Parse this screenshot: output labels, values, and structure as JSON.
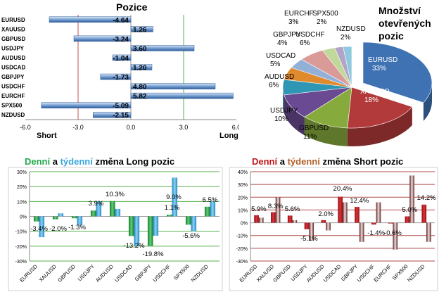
{
  "colors": {
    "bar_blue": "#4f81bd",
    "long_green": "#22a84a",
    "long_blue": "#39a6dc",
    "short_red": "#c0161b",
    "short_dark": "#7a1a1a",
    "grid_green": "#57b04c",
    "grid_red": "#b04a4a",
    "pie_title": "#000000"
  },
  "chart_data": [
    {
      "type": "bar",
      "orientation": "horizontal",
      "title": "Pozice",
      "categories": [
        "EURUSD",
        "XAUUSD",
        "GBPUSD",
        "USDJPY",
        "AUDUSD",
        "USDCAD",
        "GBPJPY",
        "USDCHF",
        "EURCHF",
        "SPX500",
        "NZDUSD"
      ],
      "values": [
        -4.64,
        1.26,
        -3.24,
        3.6,
        -1.04,
        1.2,
        -1.73,
        4.8,
        5.82,
        -5.09,
        -2.15
      ],
      "value_labels": [
        "-4.64",
        "1.26",
        "-3.24",
        "3.60",
        "-1.04",
        "1.20",
        "-1.73",
        "4.80",
        "5.82",
        "-5.09",
        "-2.15"
      ],
      "xlim": [
        -6,
        6
      ],
      "xticks": [
        "-6.0",
        "-3.0",
        "0.0",
        "3.0",
        "6.0"
      ],
      "xtick_values": [
        -6,
        -3,
        0,
        3,
        6
      ],
      "left_label": "Short",
      "right_label": "Long"
    },
    {
      "type": "pie",
      "title_lines": [
        "Množství",
        "otevřených",
        "pozic"
      ],
      "slices": [
        {
          "name": "EURUSD",
          "value": 33,
          "label": "33%",
          "color": "#3f72b3"
        },
        {
          "name": "XAUUSD",
          "value": 18,
          "label": "18%",
          "color": "#b33a3a"
        },
        {
          "name": "GBPUSD",
          "value": 11,
          "label": "11%",
          "color": "#86aa3c"
        },
        {
          "name": "USDJPY",
          "value": 10,
          "label": "10%",
          "color": "#6a4a92"
        },
        {
          "name": "AUDUSD",
          "value": 6,
          "label": "6%",
          "color": "#2f97b5"
        },
        {
          "name": "USDCAD",
          "value": 5,
          "label": "5%",
          "color": "#e08a2e"
        },
        {
          "name": "GBPJPY",
          "value": 4,
          "label": "4%",
          "color": "#93b0d8"
        },
        {
          "name": "USDCHF",
          "value": 6,
          "label": "6%",
          "color": "#d99a98"
        },
        {
          "name": "EURCHF",
          "value": 3,
          "label": "3%",
          "color": "#c2d89a"
        },
        {
          "name": "SPX500",
          "value": 2,
          "label": "2%",
          "color": "#b2a3c8"
        },
        {
          "name": "NZDUSD",
          "value": 2,
          "label": "2%",
          "color": "#8fc9de"
        }
      ]
    },
    {
      "type": "bar",
      "title_parts": [
        "Denní",
        " a ",
        "týdenní",
        " změna Long pozic"
      ],
      "categories": [
        "EURUSD",
        "XAUUSD",
        "GBPUSD",
        "USDJPY",
        "AUDUSD",
        "USDCAD",
        "GBPJPY",
        "USDCHF",
        "SPX500",
        "NZDUSD"
      ],
      "series": [
        {
          "name": "Denní",
          "values": [
            -3.4,
            -2.0,
            -1.3,
            3.9,
            10.3,
            -13.2,
            -19.8,
            1.1,
            -5.6,
            6.5
          ]
        },
        {
          "name": "týdenní",
          "values": [
            -14.0,
            2.0,
            -6.0,
            10.0,
            5.0,
            -20.0,
            -13.0,
            26.0,
            -10.0,
            10.0
          ]
        }
      ],
      "data_labels": [
        "-3.4%",
        "-2.0%",
        "-1.3%",
        "3.9%",
        "10.3%",
        "-13.2%",
        "-19.8%",
        "1.1%",
        "-5.6%",
        "6.5%"
      ],
      "extra_labels": [
        "9.0%"
      ],
      "ylim": [
        -30,
        30
      ],
      "yticks": [
        "30%",
        "20%",
        "10%",
        "0%",
        "-10%",
        "-20%",
        "-30%"
      ],
      "ytick_values": [
        30,
        20,
        10,
        0,
        -10,
        -20,
        -30
      ]
    },
    {
      "type": "bar",
      "title_parts": [
        "Denní",
        " a ",
        "týdenní",
        " změna Short pozic"
      ],
      "categories": [
        "EURUSD",
        "XAUUSD",
        "GBPUSD",
        "USDJPY",
        "AUDUSD",
        "USDCAD",
        "GBPJPY",
        "USDCHF",
        "EURCHF",
        "SPX500",
        "NZDUSD"
      ],
      "series": [
        {
          "name": "Denní",
          "values": [
            5.9,
            8.3,
            5.6,
            -5.1,
            2.0,
            20.4,
            12.4,
            -1.4,
            -0.6,
            5.0,
            14.2
          ]
        },
        {
          "name": "týdenní",
          "values": [
            4.0,
            20.0,
            2.0,
            -14.0,
            -6.0,
            16.0,
            -15.0,
            16.0,
            -21.0,
            37.0,
            -15.0
          ]
        }
      ],
      "data_labels": [
        "5.9%",
        "8.3%",
        "5.6%",
        "-5.1%",
        "2.0%",
        "20.4%",
        "12.4%",
        "-1.4%",
        "-0.6%",
        "5.0%",
        "14.2%"
      ],
      "ylim": [
        -30,
        40
      ],
      "yticks": [
        "40%",
        "30%",
        "20%",
        "10%",
        "0%",
        "-10%",
        "-20%",
        "-30%"
      ],
      "ytick_values": [
        40,
        30,
        20,
        10,
        0,
        -10,
        -20,
        -30
      ]
    }
  ]
}
